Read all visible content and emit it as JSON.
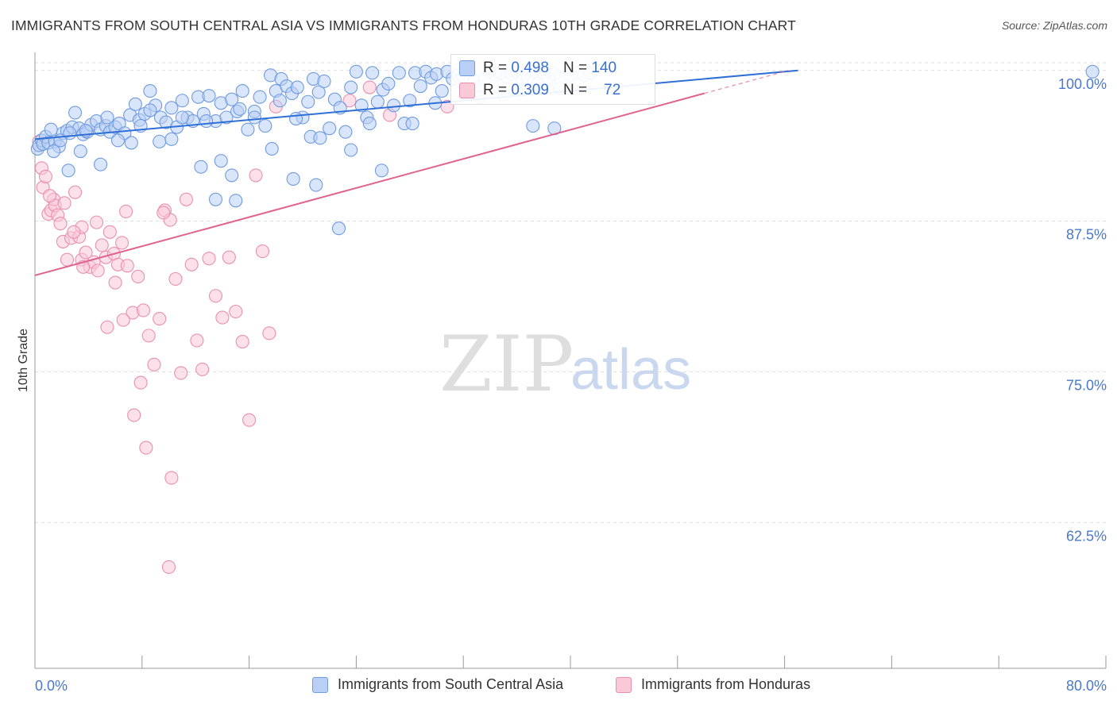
{
  "title": "IMMIGRANTS FROM SOUTH CENTRAL ASIA VS IMMIGRANTS FROM HONDURAS 10TH GRADE CORRELATION CHART",
  "source": "Source: ZipAtlas.com",
  "watermark": {
    "zip": "ZIP",
    "atlas": "atlas"
  },
  "stats": {
    "blue": {
      "r_label": "R =",
      "r_value": "0.498",
      "n_label": "N =",
      "n_value": "140"
    },
    "pink": {
      "r_label": "R =",
      "r_value": "0.309",
      "n_label": "N =",
      "n_value": "72"
    }
  },
  "legend": {
    "blue_label": "Immigrants from South Central Asia",
    "pink_label": "Immigrants from Honduras"
  },
  "colors": {
    "blue_fill": "#b9cff5",
    "blue_stroke": "#6f9be0",
    "blue_line": "#2f6fd6",
    "pink_fill": "#f9c9d8",
    "pink_stroke": "#ea8fb0",
    "pink_line": "#e0628f",
    "axis_label": "#4a78c9",
    "grid": "#dddddd"
  },
  "chart_data": {
    "type": "scatter",
    "title": "IMMIGRANTS FROM SOUTH CENTRAL ASIA VS IMMIGRANTS FROM HONDURAS 10TH GRADE CORRELATION CHART",
    "xlabel": "",
    "ylabel": "10th Grade",
    "xlim": [
      0,
      80
    ],
    "ylim": [
      50.4,
      101.5
    ],
    "x_tick_labels": [
      "0.0%",
      "80.0%"
    ],
    "y_ticks": [
      100.0,
      87.5,
      75.0,
      62.5
    ],
    "y_tick_labels": [
      "100.0%",
      "87.5%",
      "75.0%",
      "62.5%"
    ],
    "grid": true,
    "legend_position": "bottom",
    "series": [
      {
        "name": "Immigrants from South Central Asia",
        "color": "#6f9be0",
        "trend": {
          "x0": 0,
          "y0": 94.3,
          "x1": 57,
          "y1": 100.0
        },
        "points": [
          [
            0.2,
            93.5
          ],
          [
            0.3,
            93.8
          ],
          [
            0.5,
            94.2
          ],
          [
            0.6,
            93.9
          ],
          [
            0.8,
            94.5
          ],
          [
            1.0,
            94.0
          ],
          [
            1.2,
            95.1
          ],
          [
            1.5,
            94.1
          ],
          [
            1.8,
            93.7
          ],
          [
            2.1,
            94.8
          ],
          [
            2.4,
            95.0
          ],
          [
            2.8,
            95.3
          ],
          [
            3.0,
            96.5
          ],
          [
            3.3,
            95.2
          ],
          [
            3.6,
            94.7
          ],
          [
            3.9,
            94.9
          ],
          [
            4.2,
            95.5
          ],
          [
            4.6,
            95.8
          ],
          [
            4.9,
            95.1
          ],
          [
            5.3,
            95.4
          ],
          [
            5.6,
            94.9
          ],
          [
            6.0,
            95.3
          ],
          [
            6.3,
            95.6
          ],
          [
            6.7,
            94.8
          ],
          [
            7.1,
            96.3
          ],
          [
            7.5,
            97.2
          ],
          [
            7.8,
            95.9
          ],
          [
            8.2,
            96.4
          ],
          [
            8.6,
            98.3
          ],
          [
            9.0,
            97.1
          ],
          [
            9.4,
            96.1
          ],
          [
            9.8,
            95.7
          ],
          [
            10.2,
            96.9
          ],
          [
            10.6,
            95.3
          ],
          [
            11.0,
            97.5
          ],
          [
            11.4,
            96.1
          ],
          [
            11.8,
            95.8
          ],
          [
            12.2,
            97.8
          ],
          [
            12.6,
            96.4
          ],
          [
            13.0,
            97.9
          ],
          [
            13.5,
            95.8
          ],
          [
            13.9,
            97.3
          ],
          [
            14.3,
            96.1
          ],
          [
            14.7,
            97.6
          ],
          [
            15.1,
            96.6
          ],
          [
            15.5,
            98.3
          ],
          [
            15.9,
            95.1
          ],
          [
            16.4,
            96.6
          ],
          [
            16.8,
            97.8
          ],
          [
            17.2,
            95.4
          ],
          [
            17.6,
            99.6
          ],
          [
            18.0,
            98.3
          ],
          [
            18.4,
            99.3
          ],
          [
            18.8,
            98.7
          ],
          [
            19.2,
            98.1
          ],
          [
            19.6,
            98.6
          ],
          [
            20.0,
            96.1
          ],
          [
            20.4,
            97.4
          ],
          [
            20.8,
            99.3
          ],
          [
            21.2,
            98.2
          ],
          [
            21.6,
            99.1
          ],
          [
            22.0,
            95.2
          ],
          [
            22.4,
            97.6
          ],
          [
            22.8,
            96.9
          ],
          [
            23.2,
            94.9
          ],
          [
            23.6,
            98.6
          ],
          [
            24.0,
            99.9
          ],
          [
            24.4,
            97.1
          ],
          [
            24.8,
            96.1
          ],
          [
            25.2,
            99.8
          ],
          [
            25.6,
            97.4
          ],
          [
            26.0,
            98.4
          ],
          [
            26.4,
            98.9
          ],
          [
            26.8,
            97.1
          ],
          [
            27.2,
            99.8
          ],
          [
            27.6,
            95.6
          ],
          [
            28.0,
            97.5
          ],
          [
            28.4,
            99.8
          ],
          [
            28.8,
            98.7
          ],
          [
            29.2,
            99.9
          ],
          [
            29.6,
            99.4
          ],
          [
            30.0,
            99.7
          ],
          [
            30.4,
            98.3
          ],
          [
            30.8,
            99.9
          ],
          [
            31.2,
            99.3
          ],
          [
            31.6,
            99.6
          ],
          [
            32.0,
            99.5
          ],
          [
            32.4,
            99.9
          ],
          [
            32.8,
            99.1
          ],
          [
            33.2,
            98.7
          ],
          [
            33.6,
            99.3
          ],
          [
            34.0,
            99.9
          ],
          [
            34.4,
            99.6
          ],
          [
            34.8,
            99.8
          ],
          [
            35.2,
            99.5
          ],
          [
            35.6,
            99.7
          ],
          [
            36.0,
            99.9
          ],
          [
            36.4,
            99.1
          ],
          [
            36.8,
            99.4
          ],
          [
            37.2,
            99.9
          ],
          [
            37.6,
            98.9
          ],
          [
            38.0,
            99.8
          ],
          [
            38.4,
            99.3
          ],
          [
            38.8,
            99.7
          ],
          [
            39.2,
            98.5
          ],
          [
            40.0,
            99.6
          ],
          [
            40.5,
            99.8
          ],
          [
            41.0,
            99.6
          ],
          [
            41.5,
            99.8
          ],
          [
            79.0,
            99.9
          ],
          [
            1.4,
            93.3
          ],
          [
            2.5,
            91.7
          ],
          [
            3.4,
            93.3
          ],
          [
            4.9,
            92.2
          ],
          [
            6.2,
            94.2
          ],
          [
            7.2,
            94.0
          ],
          [
            9.3,
            94.1
          ],
          [
            10.2,
            94.3
          ],
          [
            12.4,
            92.0
          ],
          [
            13.9,
            92.5
          ],
          [
            14.7,
            91.3
          ],
          [
            17.7,
            93.5
          ],
          [
            19.3,
            91.0
          ],
          [
            20.6,
            94.5
          ],
          [
            21.3,
            94.4
          ],
          [
            23.6,
            93.4
          ],
          [
            25.9,
            91.7
          ],
          [
            28.2,
            95.6
          ],
          [
            37.2,
            95.4
          ],
          [
            38.8,
            95.2
          ],
          [
            1.9,
            94.2
          ],
          [
            3.8,
            95.0
          ],
          [
            5.4,
            96.1
          ],
          [
            7.9,
            95.4
          ],
          [
            8.6,
            96.7
          ],
          [
            11.0,
            96.1
          ],
          [
            12.8,
            95.8
          ],
          [
            15.3,
            96.8
          ],
          [
            16.4,
            96.1
          ],
          [
            18.3,
            97.5
          ],
          [
            13.5,
            89.3
          ],
          [
            15.0,
            89.2
          ],
          [
            22.7,
            86.9
          ],
          [
            21.0,
            90.5
          ],
          [
            19.5,
            96.0
          ],
          [
            25.0,
            95.6
          ],
          [
            29.9,
            97.3
          ],
          [
            33.2,
            97.8
          ],
          [
            35.0,
            98.0
          ],
          [
            2.6,
            94.8
          ]
        ]
      },
      {
        "name": "Immigrants from Honduras",
        "color": "#ea8fb0",
        "trend": {
          "x0": 0,
          "y0": 83.0,
          "x1": 50,
          "y1": 98.1
        },
        "points": [
          [
            0.3,
            94.1
          ],
          [
            0.5,
            91.9
          ],
          [
            0.6,
            90.3
          ],
          [
            0.8,
            91.2
          ],
          [
            1.0,
            88.1
          ],
          [
            1.2,
            88.4
          ],
          [
            1.4,
            89.3
          ],
          [
            1.5,
            88.8
          ],
          [
            1.7,
            88.0
          ],
          [
            1.9,
            87.3
          ],
          [
            2.1,
            85.8
          ],
          [
            2.4,
            84.3
          ],
          [
            2.7,
            86.1
          ],
          [
            3.0,
            89.9
          ],
          [
            3.3,
            86.2
          ],
          [
            3.5,
            84.3
          ],
          [
            3.8,
            84.9
          ],
          [
            4.1,
            83.7
          ],
          [
            4.4,
            84.1
          ],
          [
            4.7,
            83.4
          ],
          [
            5.0,
            85.5
          ],
          [
            5.3,
            84.5
          ],
          [
            5.6,
            86.6
          ],
          [
            5.9,
            84.8
          ],
          [
            6.2,
            83.9
          ],
          [
            6.5,
            85.7
          ],
          [
            6.9,
            83.8
          ],
          [
            7.3,
            79.9
          ],
          [
            7.7,
            82.9
          ],
          [
            8.1,
            80.1
          ],
          [
            8.5,
            78.0
          ],
          [
            8.9,
            75.6
          ],
          [
            9.3,
            79.4
          ],
          [
            9.7,
            88.4
          ],
          [
            10.1,
            87.6
          ],
          [
            10.5,
            82.7
          ],
          [
            10.9,
            74.9
          ],
          [
            11.3,
            89.3
          ],
          [
            11.7,
            83.9
          ],
          [
            12.1,
            77.6
          ],
          [
            12.5,
            75.2
          ],
          [
            13.0,
            84.4
          ],
          [
            13.5,
            81.3
          ],
          [
            14.0,
            79.5
          ],
          [
            14.5,
            84.5
          ],
          [
            15.0,
            80.0
          ],
          [
            15.5,
            77.5
          ],
          [
            16.0,
            71.0
          ],
          [
            16.5,
            91.3
          ],
          [
            17.0,
            85.0
          ],
          [
            17.5,
            78.2
          ],
          [
            18.0,
            97.0
          ],
          [
            25.0,
            98.6
          ],
          [
            30.8,
            97.0
          ],
          [
            2.2,
            89.0
          ],
          [
            3.6,
            83.7
          ],
          [
            4.6,
            87.4
          ],
          [
            5.4,
            78.7
          ],
          [
            6.0,
            82.4
          ],
          [
            6.6,
            79.3
          ],
          [
            7.4,
            71.4
          ],
          [
            7.9,
            74.1
          ],
          [
            8.3,
            68.7
          ],
          [
            10.2,
            66.2
          ],
          [
            10.0,
            58.8
          ],
          [
            9.6,
            88.2
          ],
          [
            6.8,
            88.3
          ],
          [
            3.5,
            87.0
          ],
          [
            23.5,
            97.5
          ],
          [
            26.5,
            96.3
          ],
          [
            1.1,
            89.6
          ],
          [
            2.9,
            86.6
          ]
        ]
      }
    ]
  }
}
